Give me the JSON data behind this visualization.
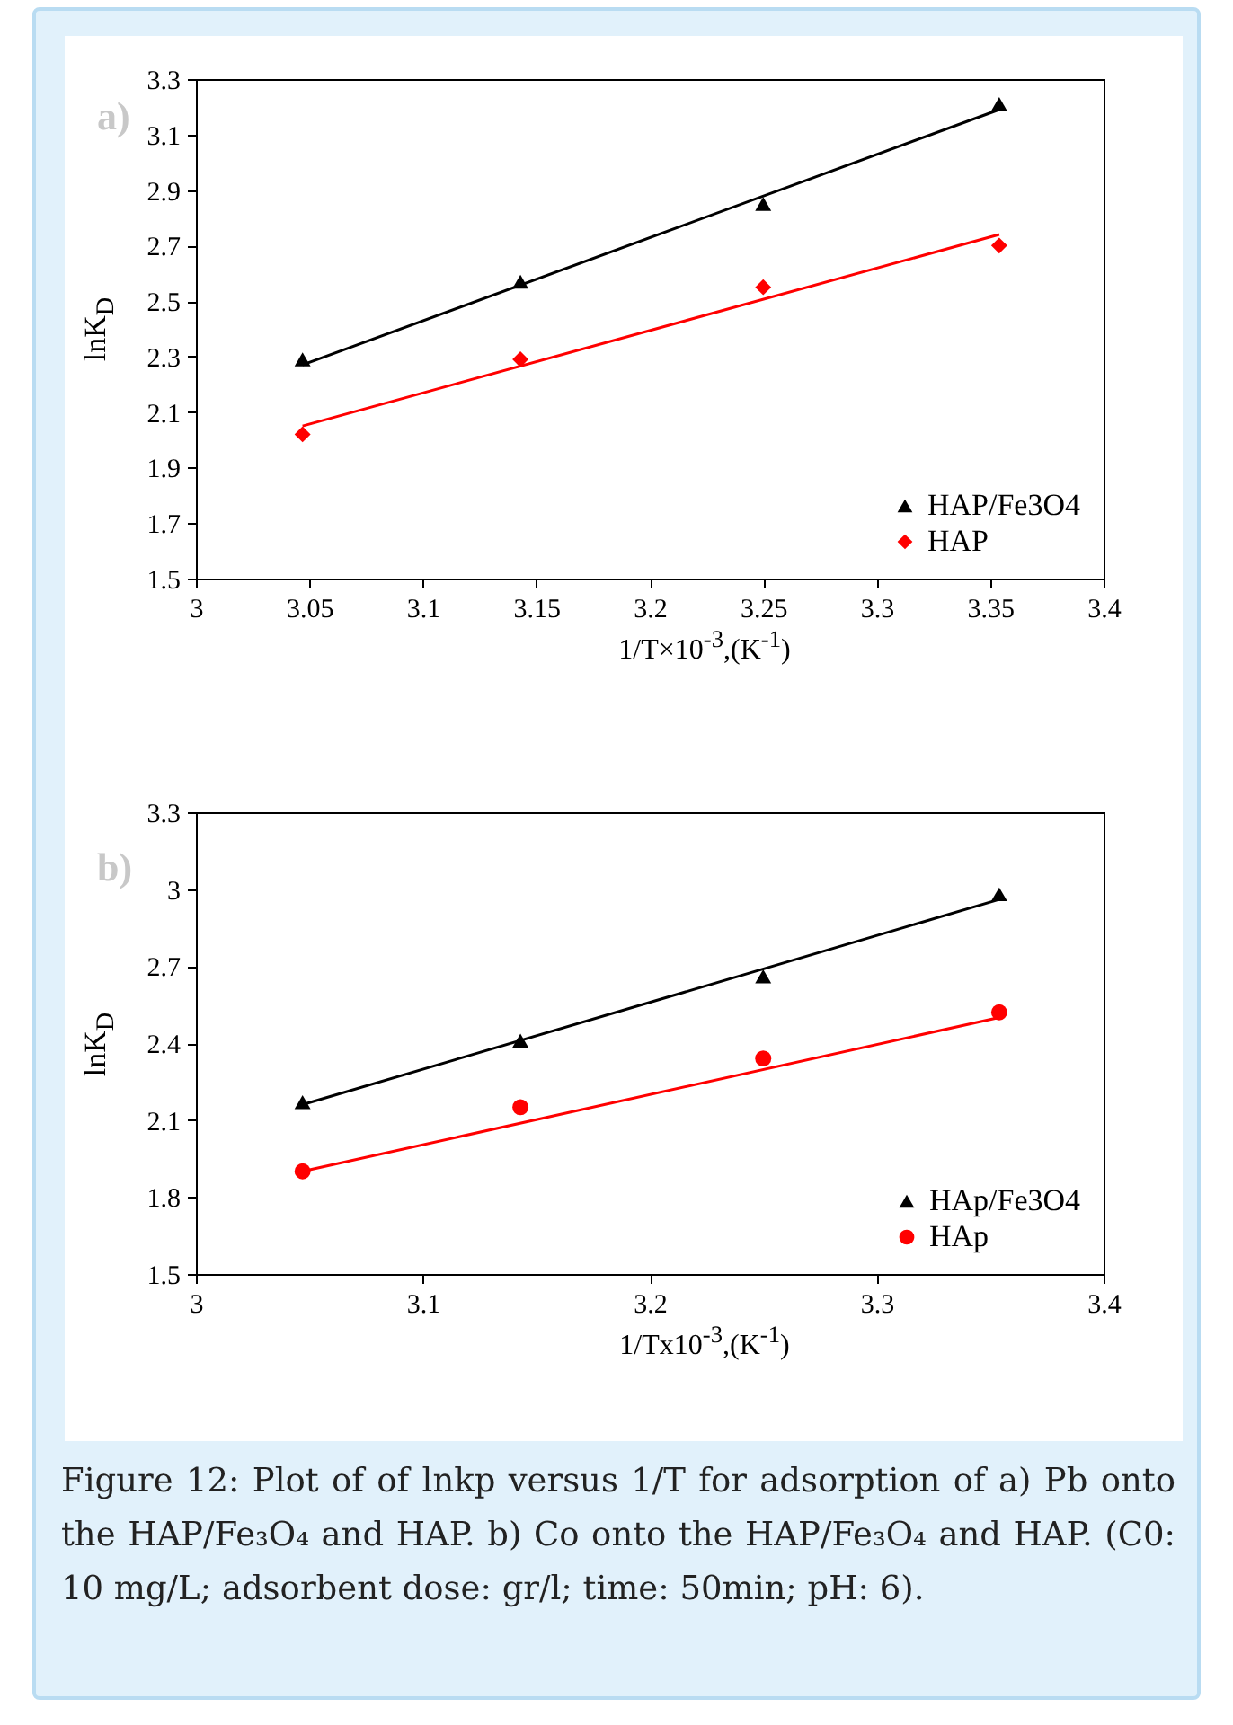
{
  "chart_data": [
    {
      "type": "scatter",
      "xlabel": "1/T×10$^{-3}$,(K$^{-1}$)",
      "ylabel": "lnK$_{D}$",
      "xlim": [
        3,
        3.4
      ],
      "xticks": [
        3,
        3.05,
        3.1,
        3.15,
        3.2,
        3.25,
        3.3,
        3.35,
        3.4
      ],
      "ylim": [
        1.5,
        3.3
      ],
      "yticks": [
        1.5,
        1.7,
        1.9,
        2.1,
        2.3,
        2.5,
        2.7,
        2.9,
        3.1,
        3.3
      ],
      "grid": false,
      "legend": "bottom right",
      "annotations": [
        "a)"
      ],
      "series": [
        {
          "type": "scatter",
          "name": "HAP/Fe3O4",
          "color": "#000000",
          "marker": "triangle",
          "x": [
            3.047,
            3.143,
            3.25,
            3.354
          ],
          "values": [
            2.29,
            2.57,
            2.85,
            3.21
          ]
        },
        {
          "type": "scatter",
          "name": "HAP",
          "color": "#ff0000",
          "marker": "diamond",
          "x": [
            3.047,
            3.143,
            3.25,
            3.354
          ],
          "values": [
            2.02,
            2.29,
            2.55,
            2.7
          ]
        },
        {
          "type": "line",
          "color": "#000000",
          "x": [
            3.047,
            3.354
          ],
          "values": [
            2.27,
            3.19
          ]
        },
        {
          "type": "line",
          "color": "#ff0000",
          "x": [
            3.047,
            3.354
          ],
          "values": [
            2.05,
            2.74
          ]
        }
      ]
    },
    {
      "type": "scatter",
      "xlabel": "1/Tx10$^{-3}$,(K$^{-1}$)",
      "ylabel": "lnK$_{D}$",
      "xlim": [
        3,
        3.4
      ],
      "xticks": [
        3,
        3.1,
        3.2,
        3.3,
        3.4
      ],
      "ylim": [
        1.5,
        3.3
      ],
      "yticks": [
        1.5,
        1.8,
        2.1,
        2.4,
        2.7,
        3,
        3.3
      ],
      "grid": false,
      "legend": "bottom right",
      "annotations": [
        "b)",
        "Figure 12: Plot of of lnkp versus 1/T for adsorption of a) Pb onto the HAP/Fe₃O₄ and HAP. b) Co onto the HAP/Fe₃O₄ and HAP. (C0: 10 mg/L; adsorbent dose: gr/l; time: 50min; pH: 6)."
      ],
      "series": [
        {
          "type": "scatter",
          "name": "HAp/Fe3O4",
          "color": "#000000",
          "marker": "triangle",
          "x": [
            3.047,
            3.143,
            3.25,
            3.354
          ],
          "values": [
            2.17,
            2.41,
            2.66,
            2.98
          ]
        },
        {
          "type": "scatter",
          "name": "HAp",
          "color": "#ff0000",
          "marker": "circle",
          "x": [
            3.047,
            3.143,
            3.25,
            3.354
          ],
          "values": [
            1.9,
            2.15,
            2.34,
            2.52
          ]
        },
        {
          "type": "line",
          "color": "#000000",
          "x": [
            3.047,
            3.354
          ],
          "values": [
            2.16,
            2.96
          ]
        },
        {
          "type": "line",
          "color": "#ff0000",
          "x": [
            3.047,
            3.354
          ],
          "values": [
            1.9,
            2.5
          ]
        }
      ]
    }
  ]
}
